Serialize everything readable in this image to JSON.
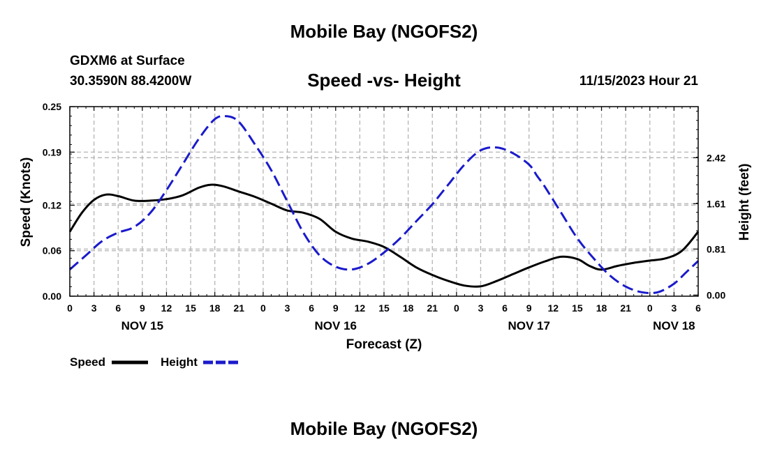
{
  "header": {
    "title": "Mobile Bay (NGOFS2)",
    "station": "GDXM6 at Surface",
    "coords": "30.3590N  88.4200W",
    "subtitle": "Speed -vs- Height",
    "datetime": "11/15/2023 Hour 21"
  },
  "footer": {
    "title": "Mobile Bay (NGOFS2)"
  },
  "legend": {
    "speed_label": "Speed",
    "height_label": "Height"
  },
  "colors": {
    "speed": "#000000",
    "height": "#1a1acc",
    "grid": "#b4b4b4"
  },
  "chart_data": {
    "type": "line",
    "title": "Speed -vs- Height",
    "xlabel": "Forecast (Z)",
    "ylabel": "Speed (Knots)",
    "y2label": "Height (feet)",
    "x_range_hours": [
      0,
      78
    ],
    "x_tick_step_hours": 3,
    "x_tick_labels": [
      "0",
      "3",
      "6",
      "9",
      "12",
      "15",
      "18",
      "21",
      "0",
      "3",
      "6",
      "9",
      "12",
      "15",
      "18",
      "21",
      "0",
      "3",
      "6",
      "9",
      "12",
      "15",
      "18",
      "21",
      "0",
      "3",
      "6"
    ],
    "day_labels": [
      {
        "label": "NOV 15",
        "hour": 9
      },
      {
        "label": "NOV 16",
        "hour": 33
      },
      {
        "label": "NOV 17",
        "hour": 57
      },
      {
        "label": "NOV 18",
        "hour": 75
      }
    ],
    "ylim": [
      0,
      0.25
    ],
    "yticks": [
      0.0,
      0.06,
      0.12,
      0.19,
      0.25
    ],
    "ytick_labels": [
      "0.00",
      "0.06",
      "0.12",
      "0.19",
      "0.25"
    ],
    "y2lim": [
      -0.02,
      3.32
    ],
    "y2ticks": [
      0.0,
      0.81,
      1.61,
      2.42
    ],
    "y2tick_labels": [
      "0.00",
      "0.81",
      "1.61",
      "2.42"
    ],
    "series": [
      {
        "name": "Speed",
        "axis": "left",
        "style": "solid",
        "x": [
          0,
          1.5,
          3,
          4.5,
          6,
          8,
          10,
          12,
          14,
          16,
          17.5,
          19,
          21,
          23,
          25,
          27,
          29,
          31,
          33,
          35,
          37,
          39,
          41,
          43,
          45,
          47,
          49,
          51,
          53,
          55,
          57,
          59,
          61,
          63,
          64.5,
          66,
          68,
          70,
          72,
          74,
          76,
          78
        ],
        "y": [
          0.085,
          0.11,
          0.127,
          0.134,
          0.132,
          0.126,
          0.126,
          0.128,
          0.133,
          0.143,
          0.147,
          0.145,
          0.138,
          0.131,
          0.122,
          0.113,
          0.11,
          0.102,
          0.085,
          0.076,
          0.072,
          0.065,
          0.052,
          0.038,
          0.028,
          0.02,
          0.014,
          0.013,
          0.02,
          0.029,
          0.038,
          0.046,
          0.052,
          0.049,
          0.04,
          0.035,
          0.04,
          0.044,
          0.047,
          0.05,
          0.06,
          0.085
        ]
      },
      {
        "name": "Height",
        "axis": "right",
        "style": "dashed",
        "x": [
          0,
          2,
          4,
          6,
          8,
          10,
          12,
          14,
          16,
          18,
          19.5,
          21,
          23,
          25,
          27,
          29,
          31,
          33,
          35,
          37,
          39,
          41,
          43,
          45,
          47,
          49,
          51,
          53,
          55,
          57,
          58,
          59,
          61,
          63,
          65,
          67,
          69,
          71,
          73,
          75,
          76.5,
          78
        ],
        "y": [
          0.45,
          0.7,
          0.95,
          1.1,
          1.2,
          1.45,
          1.85,
          2.3,
          2.75,
          3.1,
          3.15,
          3.05,
          2.65,
          2.2,
          1.65,
          1.1,
          0.7,
          0.5,
          0.45,
          0.55,
          0.75,
          1.0,
          1.3,
          1.6,
          1.95,
          2.3,
          2.55,
          2.6,
          2.5,
          2.3,
          2.1,
          1.9,
          1.45,
          1.0,
          0.65,
          0.35,
          0.15,
          0.05,
          0.05,
          0.2,
          0.4,
          0.6
        ]
      }
    ]
  }
}
